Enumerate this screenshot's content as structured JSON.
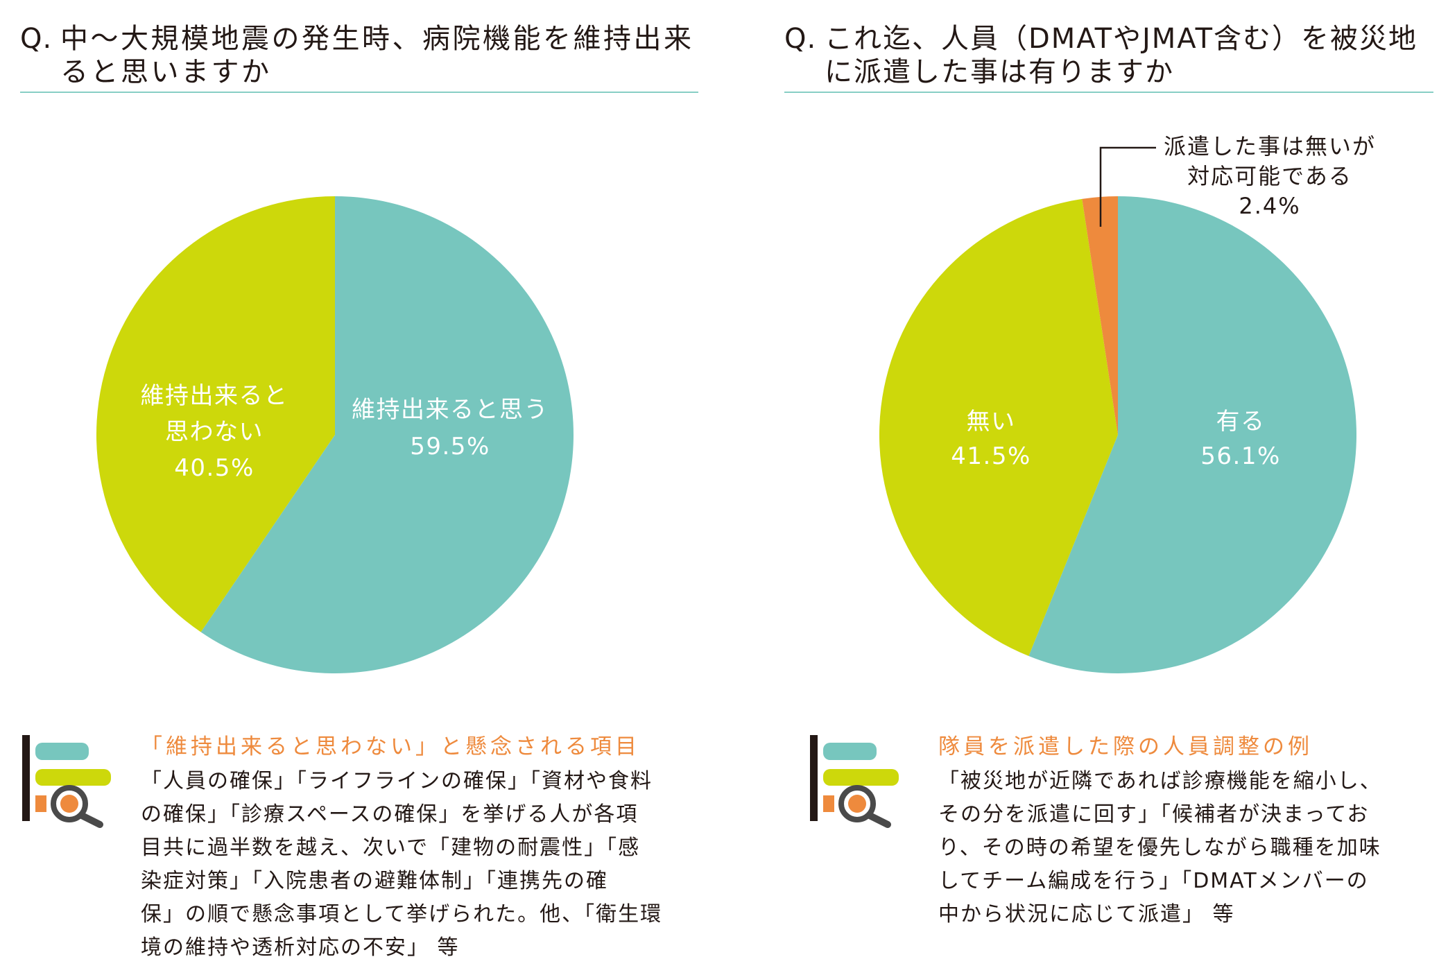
{
  "colors": {
    "teal": "#77c6be",
    "lime": "#cdd80b",
    "orange": "#ee8a3d",
    "text": "#231815",
    "rule": "#87cec5",
    "icon_ring": "#4a4a4a",
    "label_on_slice": "#ffffff"
  },
  "chart_data": [
    {
      "type": "pie",
      "title_prefix": "Q.",
      "title_lines": [
        "中〜大規模地震の発生時、病院機能を維持出来",
        "ると思いますか"
      ],
      "slices": [
        {
          "label_lines": [
            "維持出来ると思う"
          ],
          "value": 59.5,
          "value_text": "59.5%",
          "color": "#77c6be"
        },
        {
          "label_lines": [
            "維持出来ると",
            "思わない"
          ],
          "value": 40.5,
          "value_text": "40.5%",
          "color": "#cdd80b"
        }
      ]
    },
    {
      "type": "pie",
      "title_prefix": "Q.",
      "title_lines": [
        "これ迄、人員（DMATやJMAT含む）を被災地",
        "に派遣した事は有りますか"
      ],
      "slices": [
        {
          "label_lines": [
            "有る"
          ],
          "value": 56.1,
          "value_text": "56.1%",
          "color": "#77c6be"
        },
        {
          "label_lines": [
            "無い"
          ],
          "value": 41.5,
          "value_text": "41.5%",
          "color": "#cdd80b"
        },
        {
          "label_lines": [
            "派遣した事は無いが",
            "対応可能である"
          ],
          "value": 2.4,
          "value_text": "2.4%",
          "color": "#ee8a3d"
        }
      ]
    }
  ],
  "notes": [
    {
      "icon": "bar-chart-search-icon",
      "heading": "「維持出来ると思わない」と懸念される項目",
      "lines": [
        "「人員の確保」「ライフラインの確保」「資材や食料",
        "の確保」「診療スペースの確保」を挙げる人が各項",
        "目共に過半数を越え、次いで「建物の耐震性」「感",
        "染症対策」「入院患者の避難体制」「連携先の確",
        "保」の順で懸念事項として挙げられた。他、「衛生環",
        "境の維持や透析対応の不安」 等"
      ]
    },
    {
      "icon": "bar-chart-search-icon",
      "heading": "隊員を派遣した際の人員調整の例",
      "lines": [
        "「被災地が近隣であれば診療機能を縮小し、",
        "その分を派遣に回す」「候補者が決まってお",
        "り、その時の希望を優先しながら職種を加味",
        "してチーム編成を行う」「DMATメンバーの",
        "中から状況に応じて派遣」 等"
      ]
    }
  ]
}
